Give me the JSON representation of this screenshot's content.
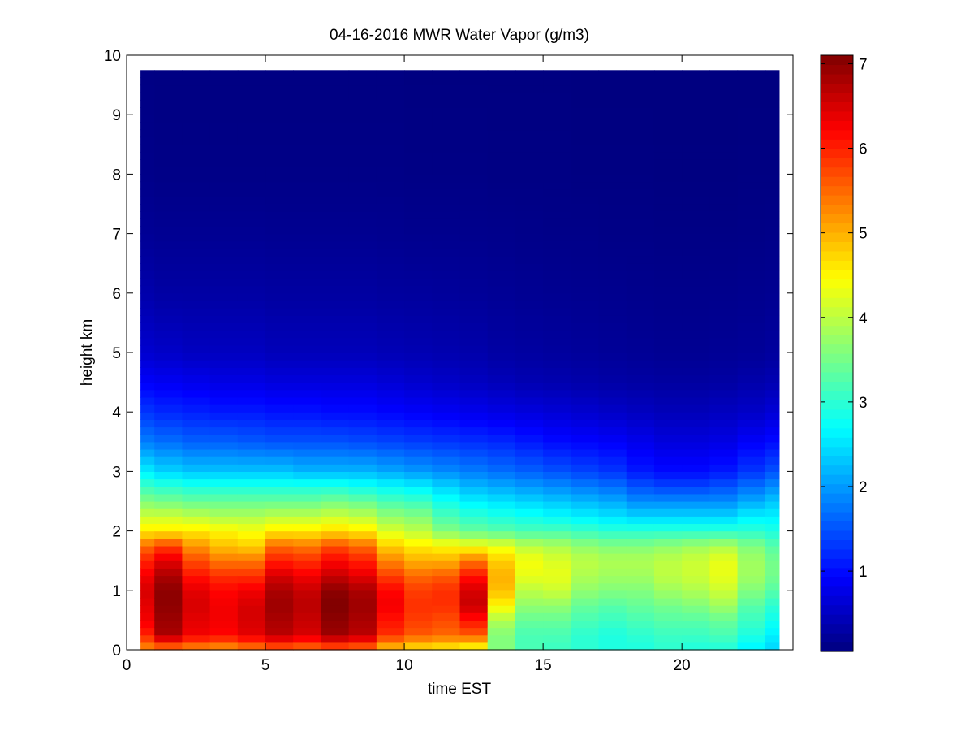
{
  "chart_data": {
    "type": "heatmap",
    "title": "04-16-2016 MWR Water Vapor (g/m3)",
    "xlabel": "time EST",
    "ylabel": "height km",
    "xlim": [
      0,
      24
    ],
    "ylim": [
      0,
      10
    ],
    "x_ticks": [
      0,
      5,
      10,
      15,
      20
    ],
    "y_ticks": [
      0,
      1,
      2,
      3,
      4,
      5,
      6,
      7,
      8,
      9,
      10
    ],
    "colorbar": {
      "colormap": "jet",
      "range": [
        0.05,
        7.1
      ],
      "ticks": [
        1,
        2,
        3,
        4,
        5,
        6,
        7
      ]
    },
    "grid": false,
    "time_start": 0.5,
    "time_end": 23.5,
    "height_top": 9.75,
    "time_bins": [
      0.5,
      1.5,
      2.5,
      3.5,
      4.5,
      5.5,
      6.5,
      7.5,
      8.5,
      9.5,
      10.5,
      11.5,
      12.5,
      13.5,
      14.5,
      15.5,
      16.5,
      17.5,
      18.5,
      19.5,
      20.5,
      21.5,
      22.5,
      23.5
    ],
    "profile_heights_km": [
      0,
      0.25,
      0.5,
      0.75,
      1.0,
      1.25,
      1.5,
      1.75,
      2.0,
      2.25,
      2.5,
      2.75,
      3.0,
      3.5,
      4.0,
      4.5,
      5.0,
      6.0,
      7.0,
      8.0,
      9.75
    ],
    "profiles": [
      [
        5.2,
        6.0,
        6.3,
        6.4,
        6.5,
        6.3,
        6.0,
        5.5,
        4.6,
        4.1,
        3.6,
        3.1,
        2.6,
        1.8,
        1.3,
        0.9,
        0.6,
        0.35,
        0.2,
        0.12,
        0.08
      ],
      [
        5.3,
        6.8,
        6.9,
        7.0,
        7.0,
        6.8,
        6.4,
        5.8,
        4.6,
        4.1,
        3.5,
        3.0,
        2.4,
        1.7,
        1.2,
        0.85,
        0.55,
        0.3,
        0.18,
        0.1,
        0.07
      ],
      [
        5.2,
        6.3,
        6.4,
        6.5,
        6.4,
        6.1,
        5.7,
        5.2,
        4.6,
        4.0,
        3.4,
        2.9,
        2.3,
        1.6,
        1.15,
        0.8,
        0.5,
        0.3,
        0.18,
        0.1,
        0.07
      ],
      [
        5.1,
        6.2,
        6.3,
        6.3,
        6.2,
        5.9,
        5.4,
        4.9,
        4.5,
        3.9,
        3.4,
        2.9,
        2.3,
        1.6,
        1.1,
        0.75,
        0.5,
        0.3,
        0.18,
        0.1,
        0.07
      ],
      [
        5.3,
        6.4,
        6.5,
        6.5,
        6.3,
        5.9,
        5.4,
        4.8,
        4.4,
        3.9,
        3.4,
        2.9,
        2.3,
        1.55,
        1.1,
        0.75,
        0.5,
        0.3,
        0.18,
        0.1,
        0.07
      ],
      [
        5.5,
        6.7,
        6.8,
        6.9,
        6.8,
        6.5,
        6.0,
        5.5,
        4.6,
        4.0,
        3.4,
        2.9,
        2.3,
        1.5,
        1.05,
        0.7,
        0.45,
        0.28,
        0.17,
        0.1,
        0.07
      ],
      [
        5.4,
        6.5,
        6.6,
        6.7,
        6.6,
        6.3,
        5.9,
        5.4,
        4.6,
        4.0,
        3.4,
        2.9,
        2.2,
        1.5,
        1.05,
        0.7,
        0.45,
        0.28,
        0.17,
        0.1,
        0.07
      ],
      [
        5.5,
        6.9,
        7.0,
        7.1,
        7.0,
        6.6,
        6.2,
        5.7,
        4.7,
        4.1,
        3.5,
        2.9,
        2.2,
        1.5,
        1.0,
        0.7,
        0.45,
        0.28,
        0.17,
        0.1,
        0.07
      ],
      [
        5.4,
        6.7,
        6.8,
        6.9,
        6.8,
        6.4,
        6.0,
        5.5,
        4.6,
        4.0,
        3.4,
        2.8,
        2.2,
        1.45,
        1.0,
        0.7,
        0.45,
        0.28,
        0.17,
        0.1,
        0.07
      ],
      [
        4.8,
        5.9,
        6.1,
        6.3,
        6.2,
        5.8,
        5.3,
        4.8,
        4.2,
        3.7,
        3.2,
        2.7,
        2.1,
        1.4,
        0.95,
        0.65,
        0.42,
        0.26,
        0.16,
        0.1,
        0.07
      ],
      [
        4.6,
        5.6,
        5.8,
        5.9,
        5.8,
        5.5,
        5.0,
        4.6,
        4.0,
        3.6,
        3.1,
        2.6,
        2.0,
        1.35,
        0.9,
        0.6,
        0.4,
        0.25,
        0.15,
        0.09,
        0.06
      ],
      [
        4.5,
        5.5,
        5.7,
        5.9,
        5.9,
        5.6,
        5.0,
        4.5,
        3.6,
        3.2,
        2.8,
        2.4,
        1.9,
        1.3,
        0.85,
        0.55,
        0.38,
        0.24,
        0.15,
        0.09,
        0.06
      ],
      [
        4.3,
        5.6,
        6.1,
        6.6,
        6.5,
        6.1,
        5.4,
        4.4,
        3.4,
        3.0,
        2.6,
        2.2,
        1.8,
        1.25,
        0.8,
        0.5,
        0.35,
        0.22,
        0.14,
        0.09,
        0.06
      ],
      [
        3.6,
        3.6,
        3.9,
        4.5,
        4.9,
        5.0,
        4.8,
        4.3,
        3.3,
        2.9,
        2.5,
        2.1,
        1.7,
        1.2,
        0.75,
        0.45,
        0.3,
        0.2,
        0.13,
        0.08,
        0.06
      ],
      [
        3.2,
        3.2,
        3.4,
        3.7,
        4.0,
        4.3,
        4.4,
        4.0,
        3.2,
        2.8,
        2.4,
        2.0,
        1.6,
        1.1,
        0.7,
        0.4,
        0.28,
        0.18,
        0.12,
        0.08,
        0.06
      ],
      [
        3.1,
        3.2,
        3.4,
        3.7,
        4.1,
        4.3,
        4.2,
        3.9,
        3.2,
        2.7,
        2.3,
        1.9,
        1.5,
        1.0,
        0.65,
        0.38,
        0.26,
        0.17,
        0.11,
        0.08,
        0.06
      ],
      [
        3.0,
        3.0,
        3.2,
        3.4,
        3.7,
        3.9,
        4.0,
        3.7,
        3.1,
        2.6,
        2.2,
        1.8,
        1.4,
        0.95,
        0.6,
        0.35,
        0.24,
        0.16,
        0.11,
        0.07,
        0.05
      ],
      [
        2.9,
        2.9,
        3.1,
        3.3,
        3.6,
        3.8,
        3.9,
        3.6,
        3.0,
        2.5,
        2.1,
        1.7,
        1.3,
        0.9,
        0.55,
        0.32,
        0.22,
        0.15,
        0.1,
        0.07,
        0.05
      ],
      [
        2.9,
        3.0,
        3.2,
        3.4,
        3.6,
        3.8,
        3.9,
        3.6,
        3.0,
        2.4,
        1.9,
        1.5,
        1.1,
        0.8,
        0.5,
        0.3,
        0.2,
        0.14,
        0.1,
        0.07,
        0.05
      ],
      [
        3.0,
        3.1,
        3.3,
        3.5,
        3.8,
        4.0,
        4.0,
        3.7,
        3.0,
        2.4,
        1.9,
        1.4,
        1.0,
        0.7,
        0.45,
        0.28,
        0.18,
        0.13,
        0.09,
        0.06,
        0.05
      ],
      [
        2.9,
        3.1,
        3.3,
        3.6,
        3.9,
        4.1,
        4.1,
        3.8,
        3.0,
        2.4,
        1.9,
        1.4,
        1.0,
        0.7,
        0.45,
        0.28,
        0.18,
        0.13,
        0.09,
        0.06,
        0.05
      ],
      [
        2.9,
        3.2,
        3.4,
        3.8,
        4.1,
        4.3,
        4.3,
        3.9,
        3.0,
        2.4,
        1.9,
        1.5,
        1.1,
        0.75,
        0.5,
        0.3,
        0.2,
        0.14,
        0.09,
        0.06,
        0.05
      ],
      [
        2.6,
        2.9,
        3.1,
        3.3,
        3.6,
        3.8,
        3.8,
        3.6,
        3.0,
        2.6,
        2.1,
        1.7,
        1.3,
        0.9,
        0.55,
        0.35,
        0.22,
        0.15,
        0.1,
        0.07,
        0.05
      ],
      [
        2.4,
        2.6,
        2.8,
        3.0,
        3.3,
        3.5,
        3.5,
        3.3,
        2.9,
        2.6,
        2.3,
        1.9,
        1.5,
        1.0,
        0.65,
        0.4,
        0.26,
        0.17,
        0.11,
        0.07,
        0.05
      ]
    ]
  }
}
